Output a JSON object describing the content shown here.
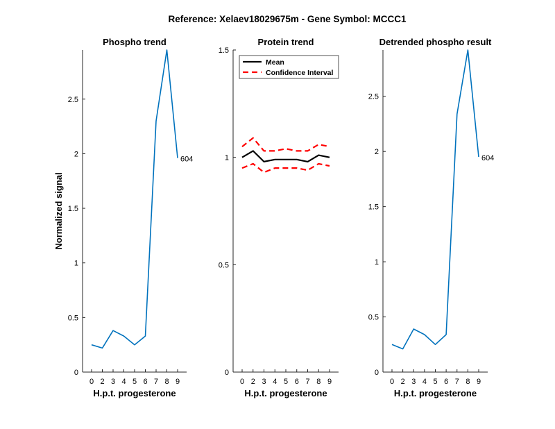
{
  "figure": {
    "suptitle": "Reference:  Xelaev18029675m - Gene Symbol:  MCCC1"
  },
  "chart_data": [
    {
      "type": "line",
      "title": "Phospho trend",
      "xlabel": "H.p.t. progesterone",
      "ylabel": "Normalized signal",
      "xticks": [
        "0",
        "2",
        "3",
        "4",
        "5",
        "6",
        "7",
        "8",
        "9"
      ],
      "yticks": [
        "0",
        "0.5",
        "1",
        "1.5",
        "2",
        "2.5"
      ],
      "ylim": [
        0,
        2.95
      ],
      "series": [
        {
          "color": "#0072bd",
          "end_label": "604",
          "values": [
            0.25,
            0.22,
            0.38,
            0.33,
            0.25,
            0.33,
            2.3,
            2.95,
            1.96
          ]
        }
      ]
    },
    {
      "type": "line",
      "title": "Protein trend",
      "xlabel": "H.p.t. progesterone",
      "ylabel": "",
      "xticks": [
        "0",
        "2",
        "3",
        "4",
        "5",
        "6",
        "7",
        "8",
        "9"
      ],
      "yticks": [
        "0",
        "0.5",
        "1",
        "1.5"
      ],
      "ylim": [
        0,
        1.5
      ],
      "legend": {
        "position": "top-left",
        "entries": [
          "Mean",
          "Confidence Interval"
        ]
      },
      "series": [
        {
          "name": "Mean",
          "color": "#000000",
          "style": "solid",
          "values": [
            1.0,
            1.03,
            0.98,
            0.99,
            0.99,
            0.99,
            0.98,
            1.01,
            1.0
          ]
        },
        {
          "name": "Confidence Interval",
          "color": "#ff0000",
          "style": "dashed",
          "values": [
            1.05,
            1.09,
            1.03,
            1.03,
            1.04,
            1.03,
            1.03,
            1.06,
            1.05
          ]
        },
        {
          "name": "Confidence Interval",
          "color": "#ff0000",
          "style": "dashed",
          "values": [
            0.95,
            0.97,
            0.93,
            0.95,
            0.95,
            0.95,
            0.94,
            0.97,
            0.96
          ]
        }
      ]
    },
    {
      "type": "line",
      "title": "Detrended phospho result",
      "xlabel": "H.p.t. progesterone",
      "ylabel": "",
      "xticks": [
        "0",
        "2",
        "3",
        "4",
        "5",
        "6",
        "7",
        "8",
        "9"
      ],
      "yticks": [
        "0",
        "0.5",
        "1",
        "1.5",
        "2",
        "2.5"
      ],
      "ylim": [
        0,
        2.92
      ],
      "series": [
        {
          "color": "#0072bd",
          "end_label": "604",
          "values": [
            0.25,
            0.21,
            0.39,
            0.34,
            0.25,
            0.34,
            2.34,
            2.92,
            1.95
          ]
        }
      ]
    }
  ]
}
